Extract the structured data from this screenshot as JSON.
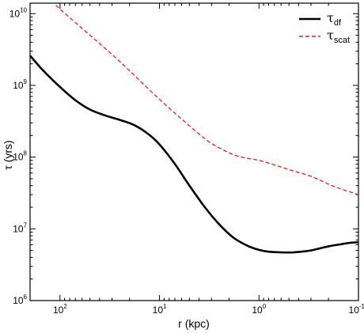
{
  "chart_data": {
    "type": "line",
    "xlabel": "r (kpc)",
    "ylabel": "τ (yrs)",
    "x_scale": "log",
    "y_scale": "log",
    "x_reversed": true,
    "xlim": [
      200,
      0.1
    ],
    "ylim": [
      1000000,
      14000000000
    ],
    "x_ticks": [
      {
        "value": 100,
        "base": "10",
        "exp": "2"
      },
      {
        "value": 10,
        "base": "10",
        "exp": "1"
      },
      {
        "value": 1,
        "base": "10",
        "exp": "0"
      },
      {
        "value": 0.1,
        "base": "10",
        "exp": "-1"
      }
    ],
    "y_ticks": [
      {
        "value": 1000000,
        "base": "10",
        "exp": "6"
      },
      {
        "value": 10000000,
        "base": "10",
        "exp": "7"
      },
      {
        "value": 100000000,
        "base": "10",
        "exp": "8"
      },
      {
        "value": 1000000000,
        "base": "10",
        "exp": "9"
      },
      {
        "value": 10000000000,
        "base": "10",
        "exp": "10"
      }
    ],
    "legend_position": "top-right",
    "series": [
      {
        "name": "τ",
        "name_sub": "df",
        "style": "solid",
        "color": "#000000",
        "x": [
          200,
          150,
          100,
          70,
          50,
          35,
          25,
          18,
          13,
          10,
          7,
          5,
          3.5,
          2.5,
          1.8,
          1.3,
          1,
          0.8,
          0.6,
          0.45,
          0.35,
          0.3,
          0.25,
          0.2,
          0.15,
          0.12,
          0.1
        ],
        "y": [
          2600000000,
          1650000000,
          950000000,
          620000000,
          460000000,
          380000000,
          330000000,
          280000000,
          210000000,
          150000000,
          80000000,
          40000000,
          20000000,
          11500000,
          7500000,
          5800000,
          5100000,
          4800000,
          4700000,
          4700000,
          4850000,
          5000000,
          5300000,
          5700000,
          6100000,
          6400000,
          6500000
        ]
      },
      {
        "name": "τ",
        "name_sub": "scat",
        "style": "dashed",
        "color": "#e02020",
        "x": [
          110,
          80,
          50,
          30,
          20,
          13,
          9,
          6,
          4,
          3,
          2,
          1.5,
          1,
          0.7,
          0.5,
          0.3,
          0.2,
          0.15,
          0.1
        ],
        "y": [
          13000000000,
          8800000000,
          5000000000,
          2700000000,
          1600000000,
          900000000,
          560000000,
          340000000,
          210000000,
          155000000,
          115000000,
          100000000,
          90000000,
          78000000,
          67000000,
          54000000,
          42000000,
          36000000,
          30000000
        ]
      }
    ]
  }
}
